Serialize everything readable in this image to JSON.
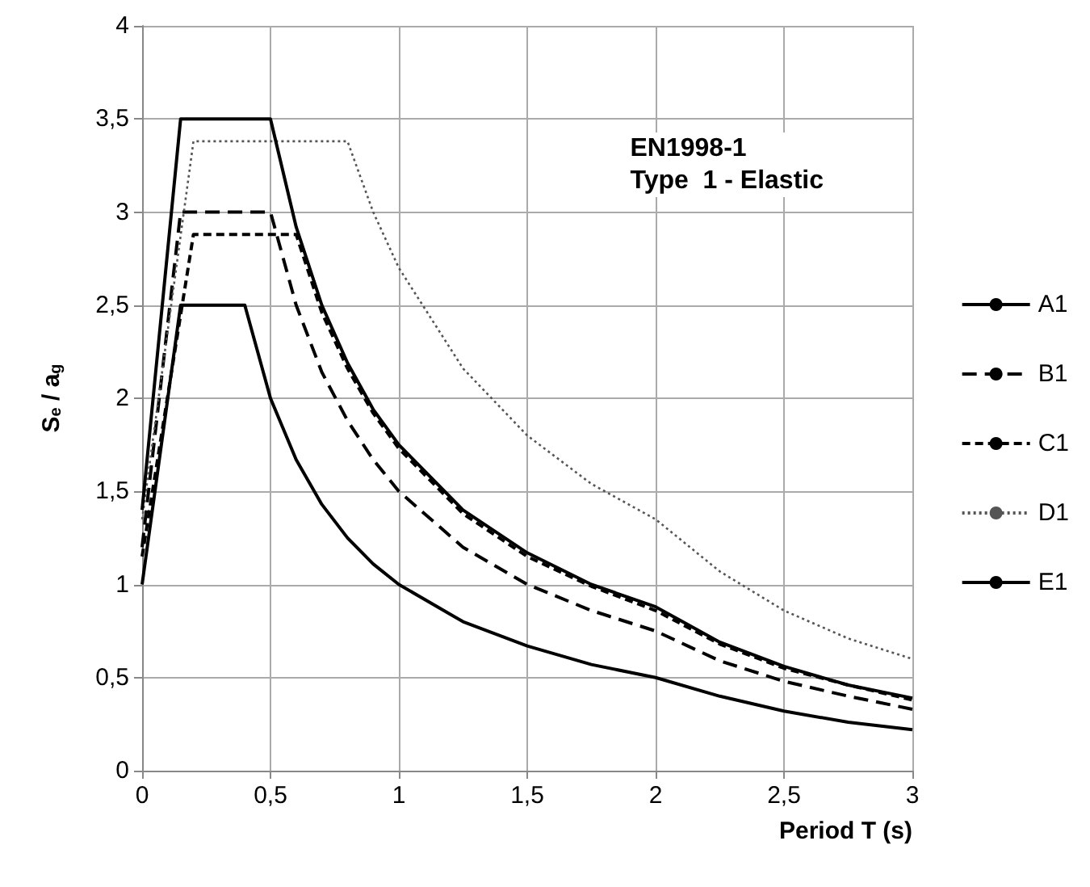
{
  "chart_data": {
    "type": "line",
    "xlabel": "Period T (s)",
    "ylabel": "S$_{e}$ / a$_{g}$",
    "annotations": [
      "EN1998-1",
      "Type  1 - Elastic"
    ],
    "xlim": [
      0,
      3
    ],
    "ylim": [
      0,
      4
    ],
    "xticks": [
      0,
      {
        "value": 0.5,
        "label": "0,5"
      },
      1,
      {
        "value": 1.5,
        "label": "1,5"
      },
      2,
      {
        "value": 2.5,
        "label": "2,5"
      },
      3
    ],
    "yticks": [
      0,
      {
        "value": 0.5,
        "label": "0,5"
      },
      1,
      {
        "value": 1.5,
        "label": "1,5"
      },
      2,
      {
        "value": 2.5,
        "label": "2,5"
      },
      3,
      {
        "value": 3.5,
        "label": "3,5"
      },
      4
    ],
    "grid": true,
    "legend": "right",
    "series": [
      {
        "name": "A1",
        "color": "#000000",
        "line_style": "solid",
        "x": [
          0,
          0.15,
          0.4,
          0.5,
          0.6,
          0.7,
          0.8,
          0.9,
          1,
          1.25,
          1.5,
          1.75,
          2,
          2.25,
          2.5,
          2.75,
          3
        ],
        "values": [
          1,
          2.5,
          2.5,
          2,
          1.67,
          1.43,
          1.25,
          1.11,
          1,
          0.8,
          0.67,
          0.57,
          0.5,
          0.4,
          0.32,
          0.26,
          0.22
        ]
      },
      {
        "name": "B1",
        "color": "#000000",
        "line_style": "dashed",
        "x": [
          0,
          0.15,
          0.5,
          0.6,
          0.7,
          0.8,
          0.9,
          1,
          1.25,
          1.5,
          1.75,
          2,
          2.25,
          2.5,
          2.75,
          3
        ],
        "values": [
          1.2,
          3,
          3,
          2.5,
          2.14,
          1.88,
          1.67,
          1.5,
          1.2,
          1,
          0.86,
          0.75,
          0.59,
          0.48,
          0.4,
          0.33
        ]
      },
      {
        "name": "C1",
        "color": "#000000",
        "line_style": "dashed_short",
        "x": [
          0,
          0.2,
          0.6,
          0.7,
          0.8,
          0.9,
          1,
          1.25,
          1.5,
          1.75,
          2,
          2.25,
          2.5,
          2.75,
          3
        ],
        "values": [
          1.15,
          2.88,
          2.88,
          2.46,
          2.16,
          1.92,
          1.73,
          1.38,
          1.15,
          0.99,
          0.86,
          0.68,
          0.55,
          0.46,
          0.38
        ]
      },
      {
        "name": "D1",
        "color": "#555555",
        "line_style": "dotted",
        "x": [
          0,
          0.2,
          0.8,
          0.9,
          1,
          1.25,
          1.5,
          1.75,
          2,
          2.25,
          2.5,
          2.75,
          3
        ],
        "values": [
          1.35,
          3.38,
          3.38,
          3,
          2.7,
          2.16,
          1.8,
          1.54,
          1.35,
          1.07,
          0.86,
          0.71,
          0.6
        ]
      },
      {
        "name": "E1",
        "color": "#000000",
        "line_style": "solid",
        "x": [
          0,
          0.15,
          0.5,
          0.6,
          0.7,
          0.8,
          0.9,
          1,
          1.25,
          1.5,
          1.75,
          2,
          2.25,
          2.5,
          2.75,
          3
        ],
        "values": [
          1.4,
          3.5,
          3.5,
          2.92,
          2.5,
          2.19,
          1.94,
          1.75,
          1.4,
          1.17,
          1,
          0.88,
          0.69,
          0.56,
          0.46,
          0.39
        ]
      }
    ]
  }
}
